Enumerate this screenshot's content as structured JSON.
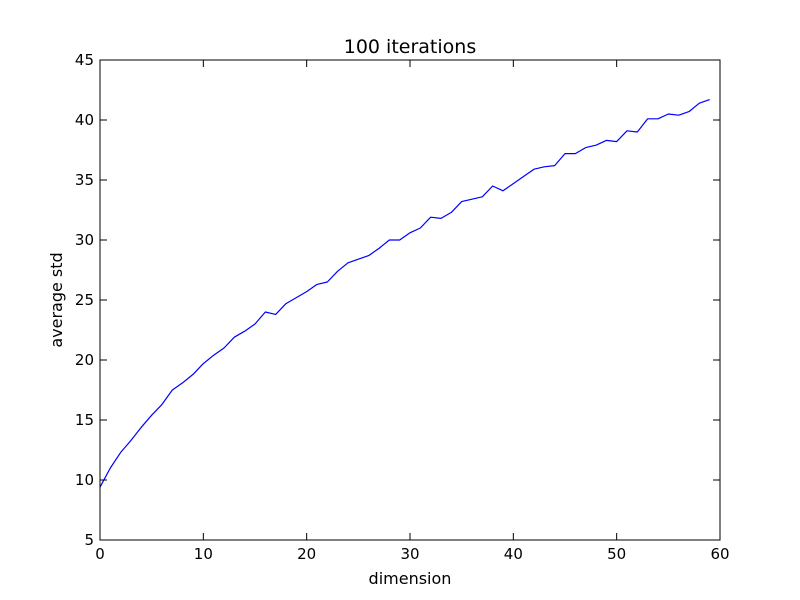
{
  "chart_data": {
    "type": "line",
    "title": "100 iterations",
    "xlabel": "dimension",
    "ylabel": "average std",
    "xlim": [
      0,
      60
    ],
    "ylim": [
      5,
      45
    ],
    "xticks": [
      "0",
      "10",
      "20",
      "30",
      "40",
      "50",
      "60"
    ],
    "yticks": [
      "5",
      "10",
      "15",
      "20",
      "25",
      "30",
      "35",
      "40",
      "45"
    ],
    "grid": false,
    "legend": "none",
    "series": [
      {
        "color": "#0000ff",
        "x": [
          0,
          1,
          2,
          3,
          4,
          5,
          6,
          7,
          8,
          9,
          10,
          11,
          12,
          13,
          14,
          15,
          16,
          17,
          18,
          19,
          20,
          21,
          22,
          23,
          24,
          25,
          26,
          27,
          28,
          29,
          30,
          31,
          32,
          33,
          34,
          35,
          36,
          37,
          38,
          39,
          40,
          41,
          42,
          43,
          44,
          45,
          46,
          47,
          48,
          49,
          50,
          51,
          52,
          53,
          54,
          55,
          56,
          57,
          58,
          59
        ],
        "y": [
          9.4,
          11.0,
          12.3,
          13.3,
          14.4,
          15.4,
          16.3,
          17.5,
          18.1,
          18.8,
          19.7,
          20.4,
          21.0,
          21.9,
          22.4,
          23.0,
          24.0,
          23.8,
          24.7,
          25.2,
          25.7,
          26.3,
          26.5,
          27.4,
          28.1,
          28.4,
          28.7,
          29.3,
          30.0,
          30.0,
          30.6,
          31.0,
          31.9,
          31.8,
          32.3,
          33.2,
          33.4,
          33.6,
          34.5,
          34.1,
          34.7,
          35.3,
          35.9,
          36.1,
          36.2,
          37.2,
          37.2,
          37.7,
          37.9,
          38.3,
          38.2,
          39.1,
          39.0,
          40.1,
          40.1,
          40.5,
          40.4,
          40.7,
          41.4,
          41.7
        ]
      }
    ]
  }
}
